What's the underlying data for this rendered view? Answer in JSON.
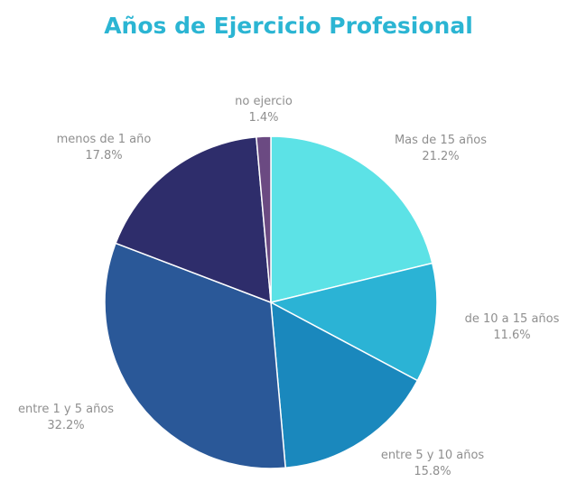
{
  "chart_data": {
    "type": "pie",
    "title": "Años de Ejercicio Profesional",
    "slices": [
      {
        "label": "Mas de 15 años",
        "value": 21.2,
        "value_label": "21.2%",
        "color": "#5ce2e6"
      },
      {
        "label": "de 10 a 15 años",
        "value": 11.6,
        "value_label": "11.6%",
        "color": "#2bb3d5"
      },
      {
        "label": "entre 5 y 10 años",
        "value": 15.8,
        "value_label": "15.8%",
        "color": "#1a88bd"
      },
      {
        "label": "entre 1 y 5 años",
        "value": 32.2,
        "value_label": "32.2%",
        "color": "#2a5898"
      },
      {
        "label": "menos de 1 año",
        "value": 17.8,
        "value_label": "17.8%",
        "color": "#2e2d6b"
      },
      {
        "label": "no ejercio",
        "value": 1.4,
        "value_label": "1.4%",
        "color": "#6b4a82"
      }
    ]
  }
}
